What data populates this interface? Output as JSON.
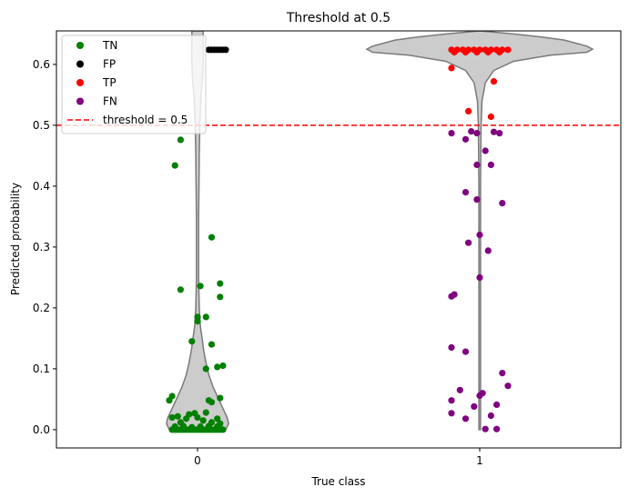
{
  "chart_data": {
    "type": "scatter",
    "title": "Threshold at 0.5",
    "xlabel": "True class",
    "ylabel": "Predicted probability",
    "categories": [
      "0",
      "1"
    ],
    "xlim": [
      -0.5,
      1.5
    ],
    "ylim": [
      -0.03,
      0.655
    ],
    "yticks": [
      "0.0",
      "0.1",
      "0.2",
      "0.3",
      "0.4",
      "0.5",
      "0.6"
    ],
    "threshold": 0.5,
    "legend_position": "top-left",
    "violins": [
      {
        "category": "0",
        "color": "#cccccc",
        "profile": [
          [
            -0.0,
            0.0
          ],
          [
            0.0,
            0.1
          ],
          [
            0.01,
            0.11
          ],
          [
            0.02,
            0.105
          ],
          [
            0.03,
            0.095
          ],
          [
            0.05,
            0.075
          ],
          [
            0.07,
            0.055
          ],
          [
            0.09,
            0.04
          ],
          [
            0.11,
            0.03
          ],
          [
            0.13,
            0.022
          ],
          [
            0.15,
            0.016
          ],
          [
            0.17,
            0.01
          ],
          [
            0.2,
            0.006
          ],
          [
            0.25,
            0.004
          ],
          [
            0.3,
            0.004
          ],
          [
            0.35,
            0.004
          ],
          [
            0.4,
            0.005
          ],
          [
            0.45,
            0.006
          ],
          [
            0.5,
            0.008
          ],
          [
            0.55,
            0.013
          ],
          [
            0.58,
            0.018
          ],
          [
            0.6,
            0.02
          ],
          [
            0.62,
            0.021
          ],
          [
            0.645,
            0.02
          ],
          [
            0.655,
            0.02
          ]
        ]
      },
      {
        "category": "1",
        "color": "#cccccc",
        "profile": [
          [
            0.0,
            0.003
          ],
          [
            0.1,
            0.003
          ],
          [
            0.2,
            0.003
          ],
          [
            0.3,
            0.003
          ],
          [
            0.4,
            0.003
          ],
          [
            0.45,
            0.004
          ],
          [
            0.5,
            0.005
          ],
          [
            0.54,
            0.008
          ],
          [
            0.57,
            0.02
          ],
          [
            0.59,
            0.05
          ],
          [
            0.605,
            0.12
          ],
          [
            0.615,
            0.25
          ],
          [
            0.62,
            0.38
          ],
          [
            0.625,
            0.4
          ],
          [
            0.63,
            0.38
          ],
          [
            0.64,
            0.3
          ],
          [
            0.645,
            0.22
          ],
          [
            0.65,
            0.12
          ],
          [
            0.655,
            0.0
          ]
        ]
      }
    ],
    "series": [
      {
        "name": "TN",
        "color": "#008000",
        "points": [
          [
            -0.09,
            0.0
          ],
          [
            -0.08,
            0.0
          ],
          [
            -0.07,
            0.0
          ],
          [
            -0.06,
            0.0
          ],
          [
            -0.05,
            0.0
          ],
          [
            -0.04,
            0.0
          ],
          [
            -0.03,
            0.0
          ],
          [
            -0.02,
            0.0
          ],
          [
            -0.01,
            0.0
          ],
          [
            0.0,
            0.0
          ],
          [
            0.01,
            0.0
          ],
          [
            0.02,
            0.0
          ],
          [
            0.03,
            0.0
          ],
          [
            0.04,
            0.0
          ],
          [
            0.05,
            0.0
          ],
          [
            0.06,
            0.0
          ],
          [
            0.07,
            0.0
          ],
          [
            0.08,
            0.0
          ],
          [
            0.09,
            0.0
          ],
          [
            -0.08,
            0.005
          ],
          [
            -0.05,
            0.006
          ],
          [
            -0.02,
            0.004
          ],
          [
            0.01,
            0.005
          ],
          [
            0.04,
            0.006
          ],
          [
            0.07,
            0.005
          ],
          [
            -0.09,
            0.02
          ],
          [
            -0.07,
            0.022
          ],
          [
            -0.04,
            0.018
          ],
          [
            -0.03,
            0.025
          ],
          [
            -0.01,
            0.027
          ],
          [
            0.0,
            0.02
          ],
          [
            0.02,
            0.015
          ],
          [
            0.03,
            0.028
          ],
          [
            0.05,
            0.012
          ],
          [
            0.07,
            0.018
          ],
          [
            0.08,
            0.01
          ],
          [
            -0.06,
            0.012
          ],
          [
            -0.1,
            0.048
          ],
          [
            -0.09,
            0.055
          ],
          [
            0.05,
            0.045
          ],
          [
            0.04,
            0.048
          ],
          [
            0.08,
            0.052
          ],
          [
            0.07,
            0.103
          ],
          [
            0.09,
            0.105
          ],
          [
            0.03,
            0.1
          ],
          [
            0.05,
            0.14
          ],
          [
            -0.02,
            0.145
          ],
          [
            0.0,
            0.178
          ],
          [
            0.0,
            0.185
          ],
          [
            0.03,
            0.185
          ],
          [
            0.08,
            0.218
          ],
          [
            -0.06,
            0.23
          ],
          [
            0.01,
            0.236
          ],
          [
            0.08,
            0.24
          ],
          [
            0.05,
            0.316
          ],
          [
            -0.08,
            0.434
          ],
          [
            -0.06,
            0.476
          ]
        ]
      },
      {
        "name": "FP",
        "color": "#000000",
        "points": [
          [
            0.04,
            0.624
          ],
          [
            0.05,
            0.624
          ],
          [
            0.06,
            0.624
          ],
          [
            0.07,
            0.624
          ],
          [
            0.08,
            0.624
          ],
          [
            0.09,
            0.624
          ],
          [
            0.1,
            0.624
          ]
        ]
      },
      {
        "name": "TP",
        "color": "#ff0000",
        "points": [
          [
            0.9,
            0.624
          ],
          [
            0.92,
            0.624
          ],
          [
            0.94,
            0.624
          ],
          [
            0.96,
            0.624
          ],
          [
            0.98,
            0.624
          ],
          [
            1.0,
            0.624
          ],
          [
            1.02,
            0.624
          ],
          [
            1.04,
            0.624
          ],
          [
            1.06,
            0.624
          ],
          [
            1.08,
            0.624
          ],
          [
            1.1,
            0.624
          ],
          [
            0.91,
            0.62
          ],
          [
            0.95,
            0.62
          ],
          [
            0.99,
            0.62
          ],
          [
            1.03,
            0.62
          ],
          [
            1.07,
            0.62
          ],
          [
            0.9,
            0.594
          ],
          [
            1.05,
            0.572
          ],
          [
            0.96,
            0.523
          ],
          [
            1.04,
            0.514
          ]
        ]
      },
      {
        "name": "FN",
        "color": "#800080",
        "points": [
          [
            0.97,
            0.49
          ],
          [
            0.99,
            0.487
          ],
          [
            0.9,
            0.487
          ],
          [
            1.07,
            0.487
          ],
          [
            1.05,
            0.489
          ],
          [
            0.95,
            0.477
          ],
          [
            1.02,
            0.458
          ],
          [
            0.99,
            0.435
          ],
          [
            1.04,
            0.435
          ],
          [
            0.95,
            0.39
          ],
          [
            0.99,
            0.378
          ],
          [
            1.08,
            0.372
          ],
          [
            1.0,
            0.32
          ],
          [
            0.96,
            0.307
          ],
          [
            1.03,
            0.294
          ],
          [
            1.0,
            0.25
          ],
          [
            0.91,
            0.222
          ],
          [
            0.9,
            0.219
          ],
          [
            0.9,
            0.135
          ],
          [
            0.95,
            0.128
          ],
          [
            1.08,
            0.093
          ],
          [
            1.1,
            0.072
          ],
          [
            0.93,
            0.065
          ],
          [
            1.01,
            0.06
          ],
          [
            1.0,
            0.056
          ],
          [
            0.9,
            0.048
          ],
          [
            0.98,
            0.038
          ],
          [
            1.06,
            0.041
          ],
          [
            0.9,
            0.027
          ],
          [
            1.04,
            0.023
          ],
          [
            0.95,
            0.018
          ],
          [
            1.02,
            0.001
          ],
          [
            1.06,
            0.001
          ]
        ]
      }
    ],
    "threshold_color": "#ff0000",
    "legend": [
      {
        "label": "TN",
        "marker": "dot",
        "color": "#008000"
      },
      {
        "label": "FP",
        "marker": "dot",
        "color": "#000000"
      },
      {
        "label": "TP",
        "marker": "dot",
        "color": "#ff0000"
      },
      {
        "label": "FN",
        "marker": "dot",
        "color": "#800080"
      },
      {
        "label": "threshold = 0.5",
        "marker": "dashed-line",
        "color": "#ff0000"
      }
    ]
  }
}
